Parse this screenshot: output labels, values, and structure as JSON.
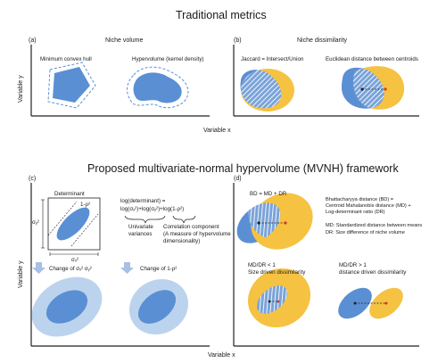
{
  "top": {
    "title": "Traditional metrics",
    "panel_a_label": "(a)",
    "panel_b_label": "(b)",
    "niche_volume": "Niche volume",
    "niche_dissimilarity": "Niche dissimilarity",
    "mch": "Minimum convex hull",
    "hypervolume": "Hypervolume (kernel density)",
    "jaccard": "Jaccard = Intersect/Union",
    "euclid": "Euclidean distance between centroids",
    "ylabel": "Variable y",
    "xlabel": "Variable x"
  },
  "bottom": {
    "title": "Proposed multivariate-normal hypervolume (MVNH) framework",
    "panel_c_label": "(c)",
    "panel_d_label": "(d)",
    "determinant": "Determinant",
    "one_minus_rho": "1-ρ²",
    "sigma_y": "σᵧ²",
    "sigma_x": "σₓ²",
    "logdet_line1": "log(determinant) =",
    "logdet_line2": "log(σₓ²)+log(σᵧ²)+log(1-ρ²)",
    "univariate_1": "Univariate",
    "univariate_2": "variances",
    "corr_1": "Correlation component",
    "corr_2": "(A measure of hypervolume",
    "corr_3": "dimensionality)",
    "change_var": "Change of σₓ² σᵧ²",
    "change_rho": "Change of 1-ρ²",
    "bd_eq": "BD = MD + DR",
    "bd_def_1": "Bhattacharyya distance (BD) =",
    "bd_def_2": "Centroid Mahalanobis distance (MD) +",
    "bd_def_3": "Log-determinant ratio (DR)",
    "md_def": "MD: Standardized distance between means",
    "dr_def": "DR:  Size difference of niche volume",
    "lt_1": "MD/DR < 1",
    "lt_2": "Size driven dissimilarity",
    "gt_1": "MD/DR > 1",
    "gt_2": "distance driven dissimilarity",
    "ylabel": "Variable y",
    "xlabel": "Variable x"
  },
  "colors": {
    "blue": "#5b8fd4",
    "light_blue": "#bcd3ee",
    "yellow": "#f5c242",
    "red": "#d9342b",
    "dashed": "#5b8fd4"
  }
}
